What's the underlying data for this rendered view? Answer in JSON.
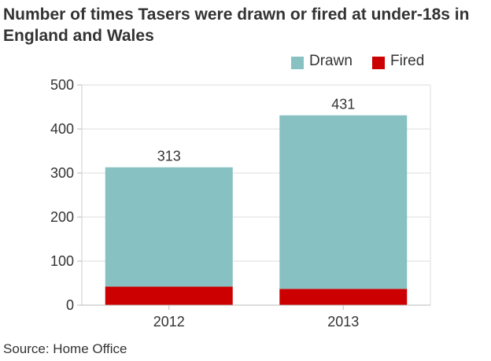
{
  "chart_data": {
    "type": "bar",
    "stacked": true,
    "title": "Number of times Tasers were drawn or fired at under-18s in England and Wales",
    "categories": [
      "2012",
      "2013"
    ],
    "series": [
      {
        "name": "Fired",
        "values": [
          42,
          37
        ],
        "color": "#cc0000"
      },
      {
        "name": "Drawn",
        "values": [
          271,
          394
        ],
        "color": "#87c1c1"
      }
    ],
    "totals": [
      313,
      431
    ],
    "data_labels": [
      "313",
      "431"
    ],
    "xlabel": "",
    "ylabel": "",
    "ylim": [
      0,
      500
    ],
    "yticks": [
      0,
      100,
      200,
      300,
      400,
      500
    ],
    "ytick_labels": [
      "0",
      "100",
      "200",
      "300",
      "400",
      "500"
    ],
    "grid": true,
    "legend_placement": "top-right",
    "source": "Source: Home Office"
  },
  "legend": {
    "drawn": {
      "label": "Drawn",
      "color": "#87c1c1"
    },
    "fired": {
      "label": "Fired",
      "color": "#cc0000"
    }
  }
}
